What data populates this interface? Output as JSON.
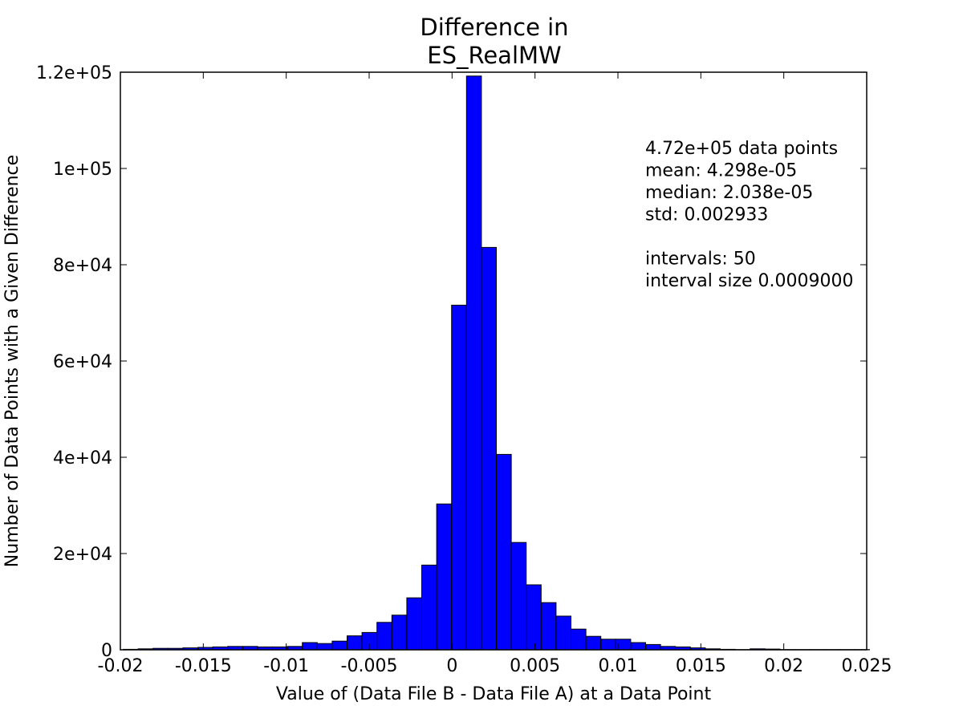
{
  "chart_data": {
    "type": "bar",
    "title_lines": [
      "Difference in",
      "ES_RealMW"
    ],
    "xlabel": "Value of (Data File B - Data File A) at a Data Point",
    "ylabel": "Number of Data Points with a Given Difference",
    "xlim": [
      -0.02,
      0.025
    ],
    "ylim": [
      0,
      120000
    ],
    "x_ticks": [
      -0.02,
      -0.015,
      -0.01,
      -0.005,
      0,
      0.005,
      0.01,
      0.015,
      0.02,
      0.025
    ],
    "x_tick_labels": [
      "-0.02",
      "-0.015",
      "-0.01",
      "-0.005",
      "0",
      "0.005",
      "0.01",
      "0.015",
      "0.02",
      "0.025"
    ],
    "y_ticks": [
      0,
      20000,
      40000,
      60000,
      80000,
      100000,
      120000
    ],
    "y_tick_labels": [
      "0",
      "2e+04",
      "4e+04",
      "6e+04",
      "8e+04",
      "1e+05",
      "1.2e+05"
    ],
    "bin_start": -0.01983,
    "bin_width": 0.0009,
    "values": [
      100,
      200,
      300,
      300,
      400,
      500,
      600,
      700,
      700,
      600,
      600,
      700,
      1500,
      1300,
      1800,
      2900,
      3600,
      5700,
      7200,
      10800,
      17600,
      30300,
      71600,
      119200,
      83600,
      40600,
      22300,
      13500,
      9800,
      7000,
      4300,
      2800,
      2200,
      2200,
      1500,
      1100,
      700,
      600,
      400,
      200,
      100,
      50,
      200,
      150,
      50,
      50,
      50,
      50,
      50,
      50
    ],
    "bar_color": "#0000ff",
    "annotations": [
      "4.72e+05 data points",
      "mean: 4.298e-05",
      "median: 2.038e-05",
      "std: 0.002933",
      "",
      "intervals: 50",
      "interval size 0.0009000"
    ]
  }
}
